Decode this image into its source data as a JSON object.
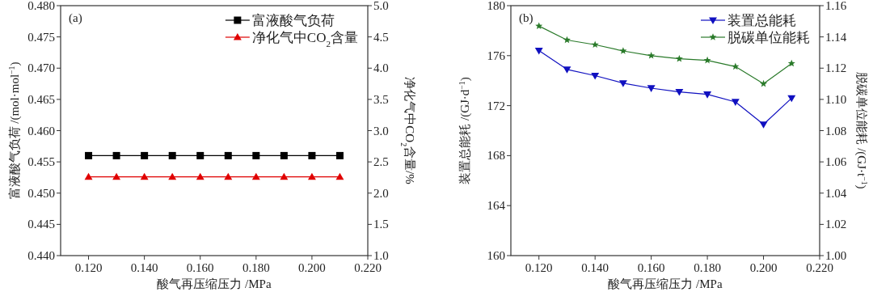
{
  "chart_data": [
    {
      "type": "line",
      "xlabel": "酸气再压缩压力 /MPa",
      "ylabel": "富液酸气负荷 /(mol·mol$^{−1}$)",
      "y2label": "净化气中CO$_{2}$含量/%",
      "annotations": [
        "(a)"
      ],
      "legend": "top right",
      "grid": false,
      "x": [
        0.12,
        0.13,
        0.14,
        0.15,
        0.16,
        0.17,
        0.18,
        0.19,
        0.2,
        0.21
      ],
      "xlim": [
        0.11,
        0.22
      ],
      "xticks": [
        {
          "value": 0.12,
          "label": "0.120"
        },
        {
          "value": 0.14,
          "label": "0.140"
        },
        {
          "value": 0.16,
          "label": "0.160"
        },
        {
          "value": 0.18,
          "label": "0.180"
        },
        {
          "value": 0.2,
          "label": "0.200"
        },
        {
          "value": 0.22,
          "label": "0.220"
        }
      ],
      "ylim": [
        0.44,
        0.48
      ],
      "yticks": [
        {
          "value": 0.44,
          "label": "0.440"
        },
        {
          "value": 0.445,
          "label": "0.445"
        },
        {
          "value": 0.45,
          "label": "0.450"
        },
        {
          "value": 0.455,
          "label": "0.455"
        },
        {
          "value": 0.46,
          "label": "0.460"
        },
        {
          "value": 0.465,
          "label": "0.465"
        },
        {
          "value": 0.47,
          "label": "0.470"
        },
        {
          "value": 0.475,
          "label": "0.475"
        },
        {
          "value": 0.48,
          "label": "0.480"
        }
      ],
      "y2lim": [
        1,
        5
      ],
      "y2ticks": [
        {
          "value": 1,
          "label": "1.0"
        },
        1.5,
        {
          "value": 2,
          "label": "2.0"
        },
        2.5,
        {
          "value": 3,
          "label": "3.0"
        },
        3.5,
        {
          "value": 4,
          "label": "4.0"
        },
        4.5,
        {
          "value": 5,
          "label": "5.0"
        }
      ],
      "series": [
        {
          "name": "富液酸气负荷",
          "color": "#000000",
          "marker": "square",
          "values": [
            0.456,
            0.456,
            0.456,
            0.456,
            0.456,
            0.456,
            0.456,
            0.456,
            0.456,
            0.456
          ]
        },
        {
          "name": "净化气中CO$_{2}$含量",
          "color": "#e00000",
          "marker": "triangle",
          "axis": "y2",
          "values": [
            2.26,
            2.26,
            2.26,
            2.26,
            2.26,
            2.26,
            2.26,
            2.26,
            2.26,
            2.26
          ]
        }
      ]
    },
    {
      "type": "line",
      "xlabel": "酸气再压缩压力 /MPa",
      "ylabel": "装置总能耗 /(GJ·d$^{−1}$)",
      "y2label": "脱碳单位能耗 /(GJ·t$^{−1}$)",
      "annotations": [
        "(b)"
      ],
      "legend": "top right",
      "grid": false,
      "x": [
        0.12,
        0.13,
        0.14,
        0.15,
        0.16,
        0.17,
        0.18,
        0.19,
        0.2,
        0.21
      ],
      "xlim": [
        0.11,
        0.22
      ],
      "xticks": [
        {
          "value": 0.12,
          "label": "0.120"
        },
        {
          "value": 0.14,
          "label": "0.140"
        },
        {
          "value": 0.16,
          "label": "0.160"
        },
        {
          "value": 0.18,
          "label": "0.180"
        },
        {
          "value": 0.2,
          "label": "0.200"
        },
        {
          "value": 0.22,
          "label": "0.220"
        }
      ],
      "ylim": [
        160,
        180
      ],
      "yticks": [
        160,
        164,
        168,
        172,
        176,
        180
      ],
      "y2lim": [
        1,
        1.16
      ],
      "y2ticks": [
        {
          "value": 1,
          "label": "1.00"
        },
        1.02,
        1.04,
        1.06,
        1.08,
        {
          "value": 1.1,
          "label": "1.10"
        },
        1.12,
        1.14,
        1.16
      ],
      "series": [
        {
          "name": "装置总能耗",
          "color": "#1010c0",
          "marker": "triangle_down",
          "values": [
            176.4,
            174.9,
            174.4,
            173.8,
            173.4,
            173.1,
            172.9,
            172.3,
            170.5,
            172.6
          ]
        },
        {
          "name": "脱碳单位能耗",
          "color": "#2a7a2a",
          "marker": "star",
          "axis": "y2",
          "values": [
            1.147,
            1.138,
            1.135,
            1.131,
            1.128,
            1.126,
            1.125,
            1.121,
            1.11,
            1.123
          ]
        }
      ]
    }
  ]
}
